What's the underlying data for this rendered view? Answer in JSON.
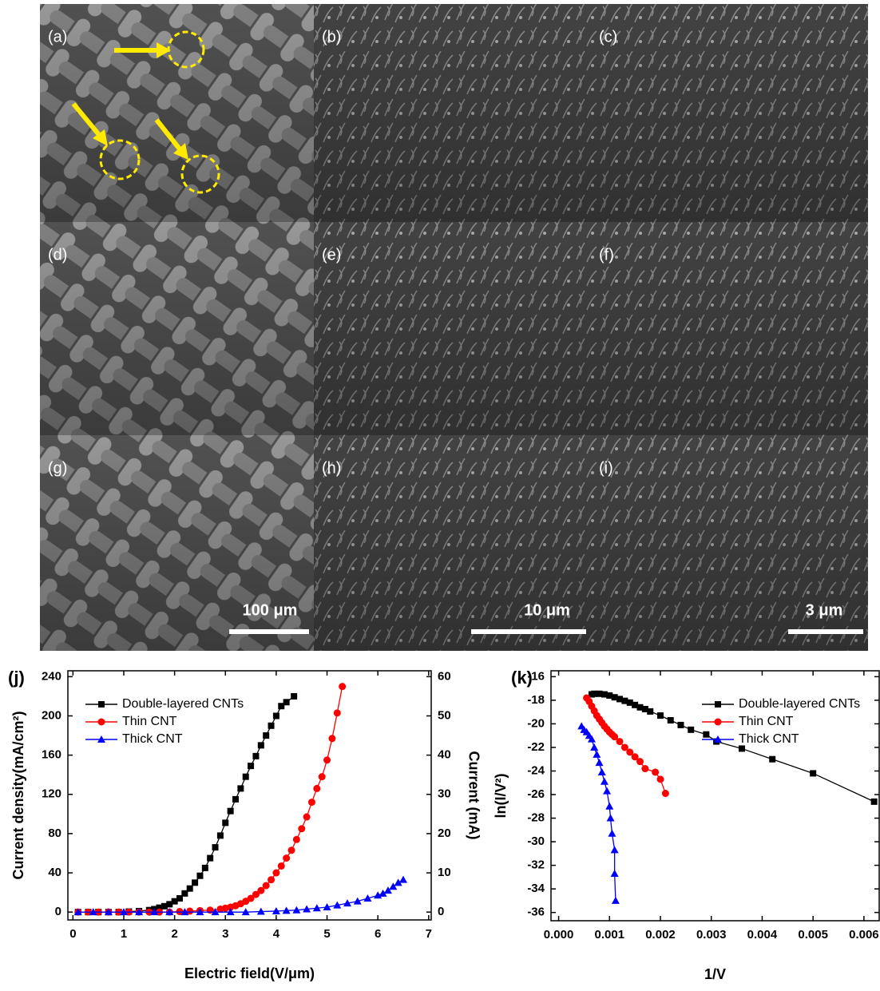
{
  "images": [
    {
      "label": "(a)"
    },
    {
      "label": "(b)"
    },
    {
      "label": "(c)"
    },
    {
      "label": "(d)"
    },
    {
      "label": "(e)"
    },
    {
      "label": "(f)"
    },
    {
      "label": "(g)",
      "scale_bar": "100 μm"
    },
    {
      "label": "(h)",
      "scale_bar": "10 μm"
    },
    {
      "label": "(i)",
      "scale_bar": "3 μm"
    }
  ],
  "chart_data": [
    {
      "type": "line",
      "panel_label": "(j)",
      "x_label": "Electric field(V/μm)",
      "y_label": "Current density(mA/cm²)",
      "y2_label": "Current (mA)",
      "xlim": [
        -0.1,
        7.05
      ],
      "ylim": [
        -8,
        246
      ],
      "y2lim": [
        -2,
        61.5
      ],
      "xticks": [
        0,
        1,
        2,
        3,
        4,
        5,
        6,
        7
      ],
      "yticks": [
        0,
        40,
        80,
        120,
        160,
        200,
        240
      ],
      "y2ticks": [
        0,
        10,
        20,
        30,
        40,
        50,
        60
      ],
      "legend": "upper left",
      "series": [
        {
          "name": "Double-layered CNTs",
          "color": "#000000",
          "marker": "square",
          "x": [
            0.1,
            0.3,
            0.5,
            0.7,
            0.9,
            1.1,
            1.3,
            1.5,
            1.6,
            1.7,
            1.8,
            1.9,
            2.0,
            2.1,
            2.2,
            2.3,
            2.4,
            2.5,
            2.6,
            2.7,
            2.8,
            2.9,
            3.0,
            3.1,
            3.2,
            3.3,
            3.4,
            3.5,
            3.6,
            3.7,
            3.8,
            3.9,
            4.0,
            4.1,
            4.2,
            4.35
          ],
          "values": [
            0,
            0,
            0,
            0,
            0,
            0.5,
            1,
            2,
            3,
            4.5,
            6,
            8,
            11,
            14,
            19,
            24,
            30,
            37,
            45,
            55,
            66,
            78,
            91,
            103,
            115,
            126,
            138,
            149,
            159,
            170,
            180,
            190,
            200,
            210,
            214,
            220
          ]
        },
        {
          "name": "Thin CNT",
          "color": "#ff0000",
          "marker": "circle",
          "x": [
            0.1,
            0.3,
            0.5,
            0.7,
            0.9,
            1.1,
            1.3,
            1.5,
            1.7,
            1.9,
            2.1,
            2.3,
            2.5,
            2.7,
            2.9,
            3.0,
            3.1,
            3.2,
            3.3,
            3.4,
            3.5,
            3.6,
            3.7,
            3.8,
            3.9,
            4.0,
            4.1,
            4.2,
            4.3,
            4.4,
            4.5,
            4.6,
            4.7,
            4.8,
            4.9,
            5.0,
            5.1,
            5.2,
            5.3
          ],
          "values": [
            0,
            0,
            0,
            0,
            0,
            0,
            0,
            0,
            0,
            0,
            0.5,
            1,
            1.5,
            2,
            3,
            4,
            5,
            6.5,
            8.5,
            11,
            14,
            18,
            22,
            27,
            33,
            40,
            47,
            55,
            63,
            74,
            85,
            97,
            112,
            126,
            138,
            155,
            177,
            203,
            230
          ]
        },
        {
          "name": "Thick CNT",
          "color": "#0000ff",
          "marker": "triangle",
          "x": [
            0.1,
            0.4,
            0.7,
            1.0,
            1.3,
            1.6,
            1.9,
            2.2,
            2.5,
            2.8,
            3.1,
            3.4,
            3.7,
            4.0,
            4.2,
            4.4,
            4.6,
            4.8,
            5.0,
            5.2,
            5.4,
            5.6,
            5.8,
            6.0,
            6.1,
            6.2,
            6.3,
            6.4,
            6.5
          ],
          "values": [
            0,
            0,
            0,
            0,
            0,
            0,
            0,
            0,
            0,
            0,
            0,
            0,
            0.5,
            1,
            1.5,
            2,
            3,
            4,
            5,
            7,
            9,
            11,
            14,
            17,
            19,
            22,
            26,
            30,
            33
          ]
        }
      ]
    },
    {
      "type": "line",
      "panel_label": "(k)",
      "x_label": "1/V",
      "y_label": "ln(I/V²)",
      "xlim": [
        -0.00015,
        0.0063
      ],
      "ylim": [
        -36.7,
        -15.5
      ],
      "xticks": [
        {
          "value": 0,
          "label": "0.000"
        },
        {
          "value": 0.001,
          "label": "0.001"
        },
        {
          "value": 0.002,
          "label": "0.002"
        },
        {
          "value": 0.003,
          "label": "0.003"
        },
        {
          "value": 0.004,
          "label": "0.004"
        },
        {
          "value": 0.005,
          "label": "0.005"
        },
        {
          "value": 0.006,
          "label": "0.006"
        }
      ],
      "yticks": [
        -16,
        -18,
        -20,
        -22,
        -24,
        -26,
        -28,
        -30,
        -32,
        -34,
        -36
      ],
      "legend": "upper right",
      "series": [
        {
          "name": "Double-layered CNTs",
          "color": "#000000",
          "marker": "square",
          "x": [
            0.00065,
            0.0007,
            0.0008,
            0.0009,
            0.001,
            0.0011,
            0.0012,
            0.0013,
            0.0014,
            0.0015,
            0.0016,
            0.0017,
            0.0018,
            0.002,
            0.0022,
            0.0024,
            0.0026,
            0.0029,
            0.0031,
            0.0036,
            0.0042,
            0.005,
            0.0062
          ],
          "values": [
            -17.5,
            -17.45,
            -17.45,
            -17.5,
            -17.6,
            -17.75,
            -17.9,
            -18.05,
            -18.2,
            -18.4,
            -18.6,
            -18.75,
            -18.95,
            -19.3,
            -19.7,
            -20.1,
            -20.5,
            -20.9,
            -21.5,
            -22.1,
            -23,
            -24.2,
            -26.6
          ]
        },
        {
          "name": "Thin CNT",
          "color": "#ff0000",
          "marker": "circle",
          "x": [
            0.00055,
            0.0006,
            0.00065,
            0.0007,
            0.00075,
            0.0008,
            0.00085,
            0.0009,
            0.00095,
            0.001,
            0.00105,
            0.0011,
            0.0012,
            0.0013,
            0.0014,
            0.0015,
            0.0016,
            0.0017,
            0.0019,
            0.002,
            0.0021
          ],
          "values": [
            -17.8,
            -18.1,
            -18.5,
            -18.9,
            -19.3,
            -19.6,
            -19.9,
            -20.2,
            -20.45,
            -20.7,
            -20.9,
            -21.1,
            -21.5,
            -22,
            -22.4,
            -22.8,
            -23.2,
            -23.8,
            -24.1,
            -24.7,
            -25.9
          ]
        },
        {
          "name": "Thick CNT",
          "color": "#0000ff",
          "marker": "triangle",
          "x": [
            0.00045,
            0.0005,
            0.00055,
            0.0006,
            0.00065,
            0.0007,
            0.00075,
            0.0008,
            0.00085,
            0.0009,
            0.00095,
            0.001,
            0.00102,
            0.00105,
            0.0011,
            0.0011,
            0.00112
          ],
          "values": [
            -20.2,
            -20.5,
            -20.7,
            -21,
            -21.3,
            -22,
            -22.6,
            -23.3,
            -24.1,
            -24.9,
            -25.7,
            -27,
            -28,
            -29.3,
            -30.7,
            -32.7,
            -35
          ]
        }
      ]
    }
  ]
}
